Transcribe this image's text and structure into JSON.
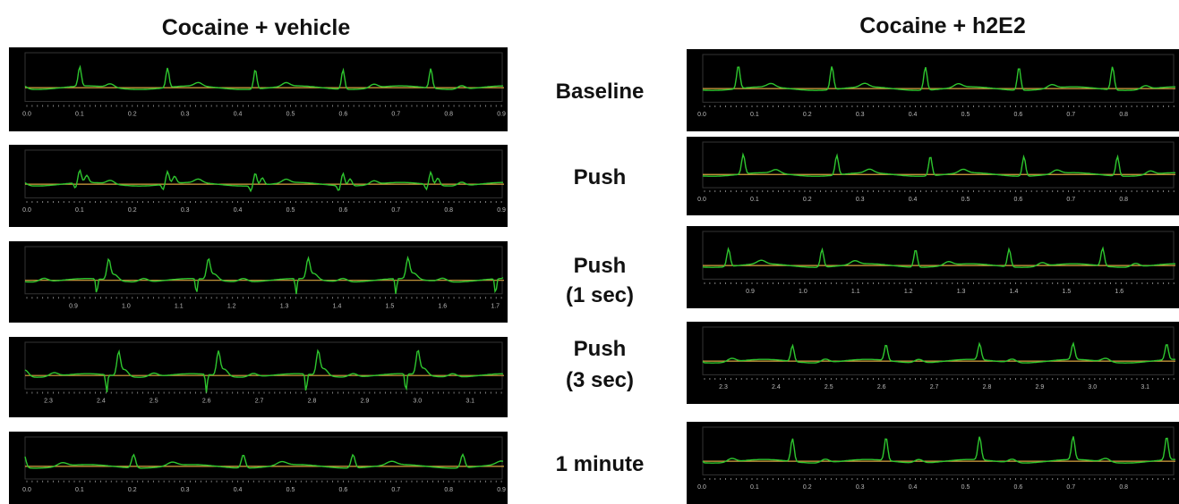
{
  "titles": [
    "Cocaine + vehicle",
    "Cocaine + h2E2"
  ],
  "row_labels": [
    [
      "Baseline"
    ],
    [
      "Push"
    ],
    [
      "Push",
      "(1 sec)"
    ],
    [
      "Push",
      "(3 sec)"
    ],
    [
      "1 minute"
    ]
  ],
  "left_panels": [
    {
      "ticks": [
        "0.0",
        "0.1",
        "0.2",
        "0.3",
        "0.4",
        "0.5",
        "0.6",
        "0.7",
        "0.8",
        "0.9"
      ]
    },
    {
      "ticks": [
        "0.0",
        "0.1",
        "0.2",
        "0.3",
        "0.4",
        "0.5",
        "0.6",
        "0.7",
        "0.8",
        "0.9"
      ]
    },
    {
      "ticks": [
        "0.9",
        "1.0",
        "1.1",
        "1.2",
        "1.3",
        "1.4",
        "1.5",
        "1.6",
        "1.7"
      ]
    },
    {
      "ticks": [
        "2.3",
        "2.4",
        "2.5",
        "2.6",
        "2.7",
        "2.8",
        "2.9",
        "3.0",
        "3.1"
      ]
    },
    {
      "ticks": [
        "0.0",
        "0.1",
        "0.2",
        "0.3",
        "0.4",
        "0.5",
        "0.6",
        "0.7",
        "0.8",
        "0.9"
      ]
    }
  ],
  "right_panels": [
    {
      "ticks": [
        "0.0",
        "0.1",
        "0.2",
        "0.3",
        "0.4",
        "0.5",
        "0.6",
        "0.7",
        "0.8"
      ]
    },
    {
      "ticks": [
        "0.0",
        "0.1",
        "0.2",
        "0.3",
        "0.4",
        "0.5",
        "0.6",
        "0.7",
        "0.8"
      ]
    },
    {
      "ticks": [
        "0.9",
        "1.0",
        "1.1",
        "1.2",
        "1.3",
        "1.4",
        "1.5",
        "1.6"
      ]
    },
    {
      "ticks": [
        "2.3",
        "2.4",
        "2.5",
        "2.6",
        "2.7",
        "2.8",
        "2.9",
        "3.0",
        "3.1"
      ]
    },
    {
      "ticks": [
        "0.0",
        "0.1",
        "0.2",
        "0.3",
        "0.4",
        "0.5",
        "0.6",
        "0.7",
        "0.8"
      ]
    }
  ]
}
